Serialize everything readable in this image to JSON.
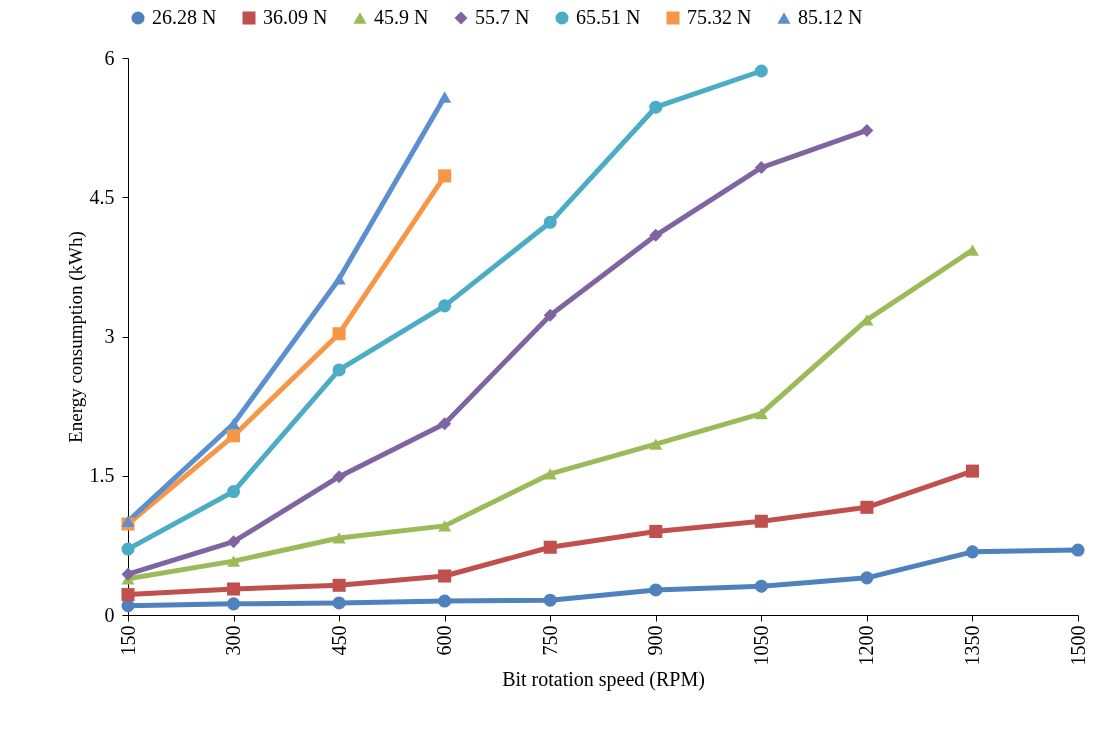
{
  "chart_data": {
    "type": "line",
    "xlabel": "Bit rotation speed (RPM)",
    "ylabel": "Energy consumption (kWh)",
    "categories": [
      "150",
      "300",
      "450",
      "600",
      "750",
      "900",
      "1050",
      "1200",
      "1350",
      "1500"
    ],
    "ylim": [
      0,
      6
    ],
    "yticks": [
      0,
      1.5,
      3,
      4.5,
      6
    ],
    "grid": false,
    "legend": "top",
    "series": [
      {
        "name": "26.28 N",
        "color": "#4f81bd",
        "marker": "circle",
        "values": [
          0.1,
          0.12,
          0.13,
          0.15,
          0.16,
          0.27,
          0.31,
          0.4,
          0.68,
          0.7
        ]
      },
      {
        "name": "36.09 N",
        "color": "#c0504d",
        "marker": "square",
        "values": [
          0.22,
          0.28,
          0.32,
          0.42,
          0.73,
          0.9,
          1.01,
          1.16,
          1.55,
          null
        ]
      },
      {
        "name": "45.9 N",
        "color": "#9bbb59",
        "marker": "triangle",
        "values": [
          0.39,
          0.58,
          0.83,
          0.96,
          1.52,
          1.84,
          2.17,
          3.18,
          3.93,
          null
        ]
      },
      {
        "name": "55.7 N",
        "color": "#8064a2",
        "marker": "diamond",
        "values": [
          0.44,
          0.79,
          1.49,
          2.06,
          3.23,
          4.09,
          4.82,
          5.22,
          null,
          null
        ]
      },
      {
        "name": "65.51 N",
        "color": "#4bacc6",
        "marker": "circle",
        "values": [
          0.71,
          1.33,
          2.64,
          3.33,
          4.23,
          5.47,
          5.86,
          null,
          null,
          null
        ]
      },
      {
        "name": "75.32 N",
        "color": "#f79646",
        "marker": "square",
        "values": [
          0.98,
          1.93,
          3.03,
          4.73,
          null,
          null,
          null,
          null,
          null,
          null
        ]
      },
      {
        "name": "85.12 N",
        "color": "#5b8fd0",
        "marker": "triangle",
        "values": [
          1.01,
          2.06,
          3.62,
          5.58,
          null,
          null,
          null,
          null,
          null,
          null
        ]
      }
    ]
  }
}
